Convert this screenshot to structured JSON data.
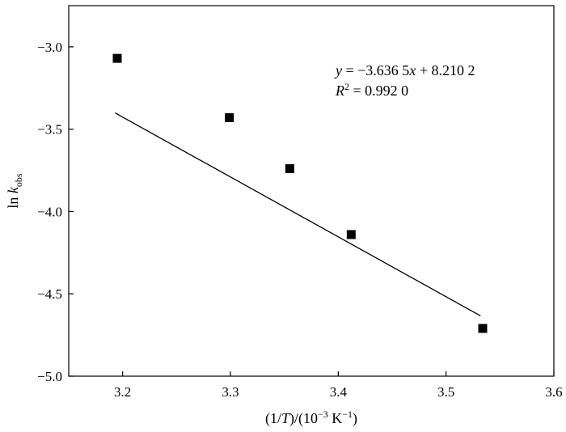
{
  "chart_data": {
    "type": "scatter",
    "xlabel_parts": [
      "(1/",
      "T",
      ")/(10",
      "−3",
      " K",
      "−1",
      ")"
    ],
    "ylabel_parts": [
      "ln ",
      "k",
      "obs"
    ],
    "xlim": [
      3.15,
      3.6
    ],
    "ylim": [
      -5.0,
      -2.75
    ],
    "x_ticks": [
      3.2,
      3.3,
      3.4,
      3.5,
      3.6
    ],
    "x_tick_labels": [
      "3.2",
      "3.3",
      "3.4",
      "3.5",
      "3.6"
    ],
    "y_ticks": [
      -3.0,
      -3.5,
      -4.0,
      -4.5,
      -5.0
    ],
    "y_tick_labels": [
      "−3.0",
      "−3.5",
      "−4.0",
      "−4.5",
      "−5.0"
    ],
    "series": [
      {
        "marker": "square",
        "x": [
          3.195,
          3.299,
          3.355,
          3.412,
          3.534
        ],
        "y": [
          -3.07,
          -3.43,
          -3.74,
          -4.14,
          -4.71
        ]
      }
    ],
    "fit_line": {
      "slope": -3.6365,
      "intercept": 8.2102,
      "x_range": [
        3.193,
        3.532
      ]
    },
    "annotation": {
      "eq_y": "y",
      "eq_rest1": " = −3.636 5",
      "eq_x": "x",
      "eq_rest2": " + 8.210 2",
      "r_R": "R",
      "r_sup": "2",
      "r_rest": " = 0.992 0"
    },
    "grid": false,
    "colors": {
      "marker": "#000000",
      "line": "#000000",
      "axes": "#000000"
    }
  }
}
